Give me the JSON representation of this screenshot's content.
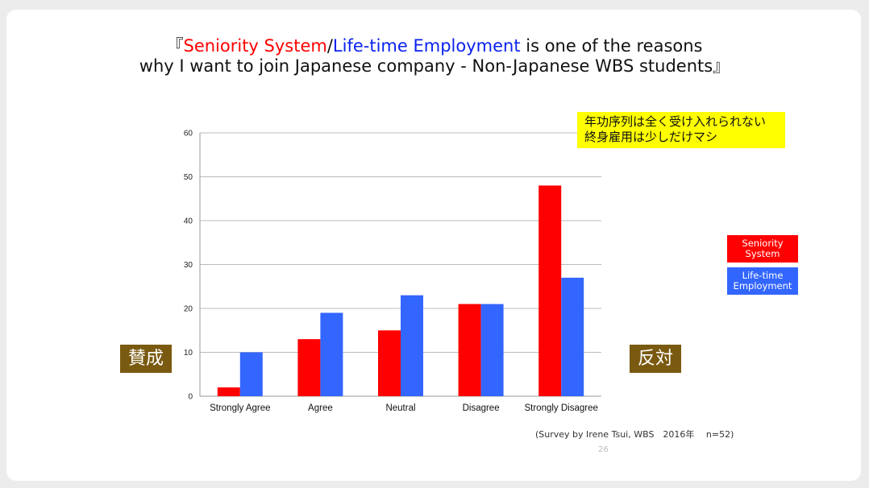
{
  "title": {
    "open_bracket": "『",
    "seniority": "Seniority System",
    "slash": "/",
    "lifetime": "Life-time Employment",
    "rest1": " is one of the reasons",
    "line2": "why I want to join Japanese company - Non-Japanese WBS students』"
  },
  "note": {
    "line1": "年功序列は全く受け入れられない",
    "line2": "終身雇用は少しだけマシ"
  },
  "tags": {
    "agree": "賛成",
    "disagree": "反対"
  },
  "credit": "(Survey by Irene Tsui, WBS　2016年　 n=52)",
  "page_number": "26",
  "colors": {
    "seniority": "#ff0000",
    "lifetime": "#3366ff",
    "tag_bg": "#7a5a10",
    "note_bg": "#ffff00"
  },
  "chart_data": {
    "type": "bar",
    "categories": [
      "Strongly Agree",
      "Agree",
      "Neutral",
      "Disagree",
      "Strongly Disagree"
    ],
    "series": [
      {
        "name": "Seniority System",
        "values": [
          2,
          13,
          15,
          21,
          48
        ]
      },
      {
        "name": "Life-time Employment",
        "values": [
          10,
          19,
          23,
          21,
          27
        ]
      }
    ],
    "ylim": [
      0,
      60
    ],
    "yticks": [
      "0",
      "10",
      "20",
      "30",
      "40",
      "50",
      "60"
    ],
    "grid": true,
    "legend_placement": "right"
  }
}
